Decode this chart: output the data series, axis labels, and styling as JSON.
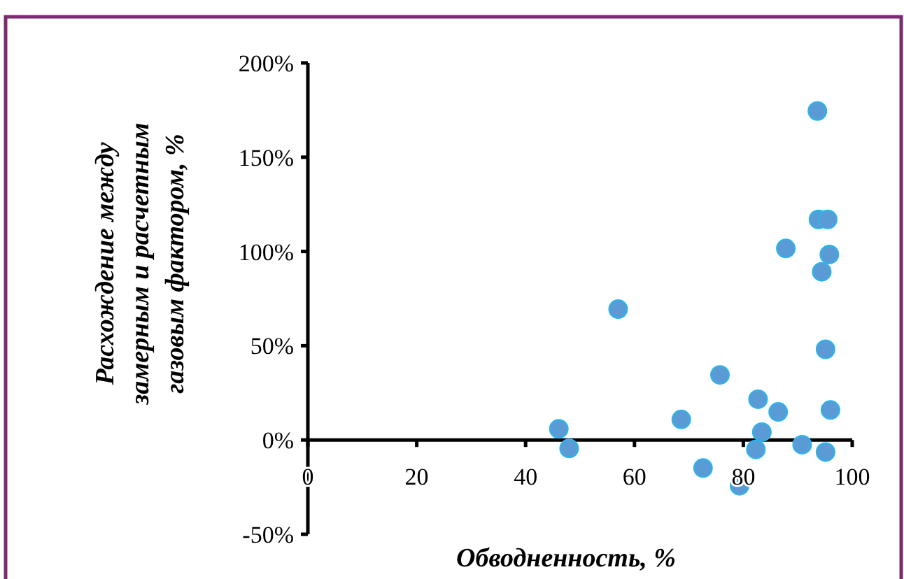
{
  "chart_data": {
    "type": "scatter",
    "xlabel": "Обводненность, %",
    "ylabel": "Расхождение между\nзамерным и расчетным\nгазовым фактором, %",
    "xlim": [
      0,
      100
    ],
    "xticks": [
      0,
      20,
      40,
      60,
      80,
      100
    ],
    "ylim": [
      -50,
      200
    ],
    "yticks": [
      {
        "value": -50,
        "label": "-50%"
      },
      {
        "value": 0,
        "label": "0%"
      },
      {
        "value": 50,
        "label": "50%"
      },
      {
        "value": 100,
        "label": "100%"
      },
      {
        "value": 150,
        "label": "150%"
      },
      {
        "value": 200,
        "label": "200%"
      }
    ],
    "grid": false,
    "marker": "circle",
    "series": [
      {
        "color": "#5b9bd5",
        "x": [
          93.6,
          93.8,
          95.5,
          87.8,
          95.8,
          94.4,
          57,
          95.1,
          75.7,
          82.7,
          86.4,
          96,
          68.6,
          46.1,
          83.4,
          48,
          82.3,
          90.8,
          95.1,
          72.6,
          79.3
        ],
        "values": [
          174.5,
          117,
          117,
          101.6,
          98.4,
          89.2,
          69.4,
          48.1,
          34.5,
          21.6,
          14.9,
          15.9,
          10.9,
          5.9,
          4.2,
          -4.5,
          -5,
          -2.5,
          -6.4,
          -14.9,
          -24.3
        ]
      }
    ]
  }
}
